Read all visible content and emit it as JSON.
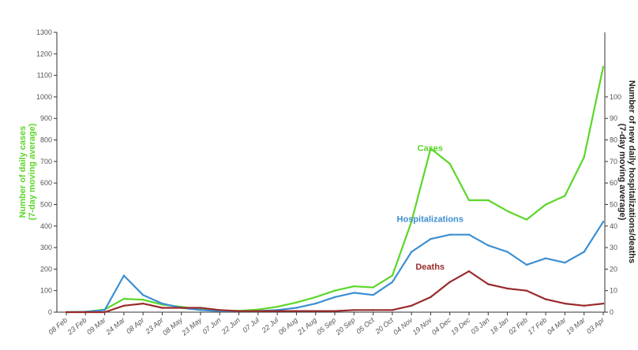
{
  "chart_data": {
    "type": "line",
    "title": "",
    "y_left": {
      "label_line1": "Number of daily cases",
      "label_line2": "(7-day moving average)",
      "color": "#5cd62a",
      "range": [
        0,
        1300
      ],
      "ticks": [
        0,
        100,
        200,
        300,
        400,
        500,
        600,
        700,
        800,
        900,
        1000,
        1100,
        1200,
        1300
      ]
    },
    "y_right": {
      "label_line1": "Number of new daily hospitalizations/deaths",
      "label_line2": "(7-day moving average)",
      "color": "#222222",
      "range": [
        0,
        130
      ],
      "ticks": [
        0,
        10,
        20,
        30,
        40,
        50,
        60,
        70,
        80,
        90,
        100
      ]
    },
    "x": [
      "08 Feb",
      "23 Feb",
      "09 Mar",
      "24 Mar",
      "08 Apr",
      "23 Apr",
      "08 May",
      "23 May",
      "07 Jun",
      "22 Jun",
      "07 Jul",
      "22 Jul",
      "06 Aug",
      "21 Aug",
      "05 Sep",
      "20 Sep",
      "05 Oct",
      "20 Oct",
      "04 Nov",
      "19 Nov",
      "04 Dec",
      "19 Dec",
      "03 Jan",
      "18 Jan",
      "02 Feb",
      "17 Feb",
      "04 Mar",
      "19 Mar",
      "03 Apr"
    ],
    "grid": false,
    "legend": "inline labels",
    "series": [
      {
        "name": "Cases",
        "axis": "left",
        "color": "#5cd62a",
        "values": [
          0,
          2,
          12,
          62,
          58,
          35,
          25,
          12,
          8,
          6,
          12,
          25,
          45,
          70,
          100,
          120,
          115,
          170,
          420,
          760,
          690,
          520,
          520,
          470,
          430,
          500,
          540,
          720,
          1140
        ]
      },
      {
        "name": "Hospitalizations",
        "axis": "right",
        "color": "#3d8fd1",
        "values": [
          0,
          0.2,
          1,
          17,
          8,
          4,
          2,
          1,
          0.5,
          0.5,
          0.5,
          1,
          2,
          4,
          7,
          9,
          8,
          14,
          28,
          34,
          36,
          36,
          31,
          28,
          22,
          25,
          23,
          28,
          42
        ]
      },
      {
        "name": "Deaths",
        "axis": "right",
        "color": "#992b2b",
        "values": [
          0,
          0,
          0,
          3,
          4,
          2,
          2,
          2,
          1,
          0.5,
          0.5,
          0.5,
          0.5,
          0.5,
          0.5,
          1,
          1,
          1,
          3,
          7,
          14,
          19,
          13,
          11,
          10,
          6,
          4,
          3,
          4
        ]
      }
    ]
  }
}
